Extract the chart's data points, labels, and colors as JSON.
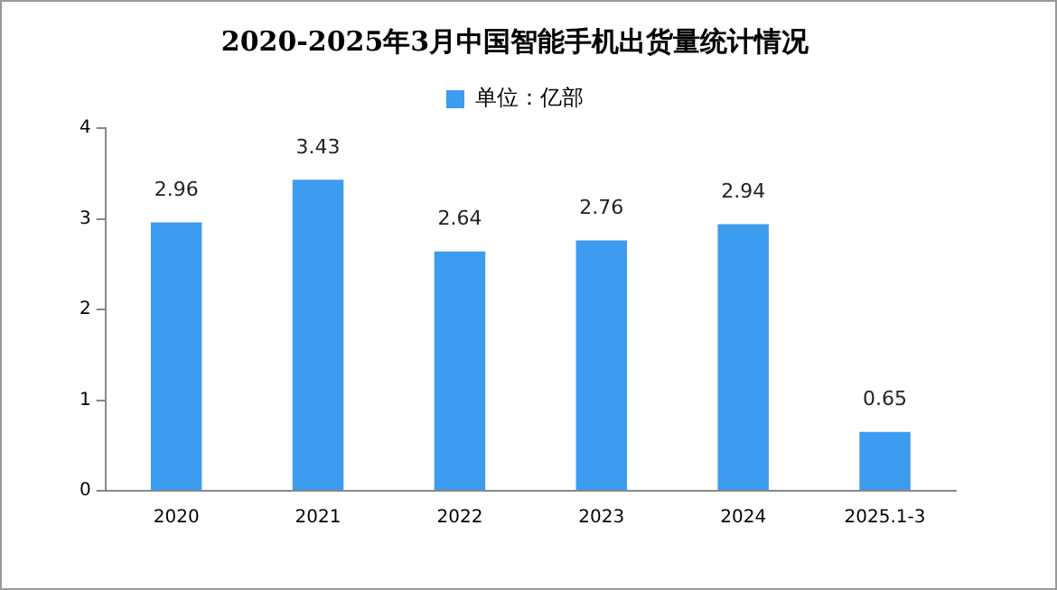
{
  "chart_data": {
    "type": "bar",
    "title": "2020-2025年3月中国智能手机出货量统计情况",
    "categories": [
      "2020",
      "2021",
      "2022",
      "2023",
      "2024",
      "2025.1-3"
    ],
    "series": [
      {
        "name": "单位：亿部",
        "color": "#3d9bf0",
        "values": [
          2.96,
          3.43,
          2.64,
          2.76,
          2.94,
          0.65
        ]
      }
    ],
    "ylim": [
      0,
      4
    ],
    "yticks": [
      0,
      1,
      2,
      3,
      4
    ],
    "grid": false,
    "legend": "top",
    "data_labels": true
  }
}
